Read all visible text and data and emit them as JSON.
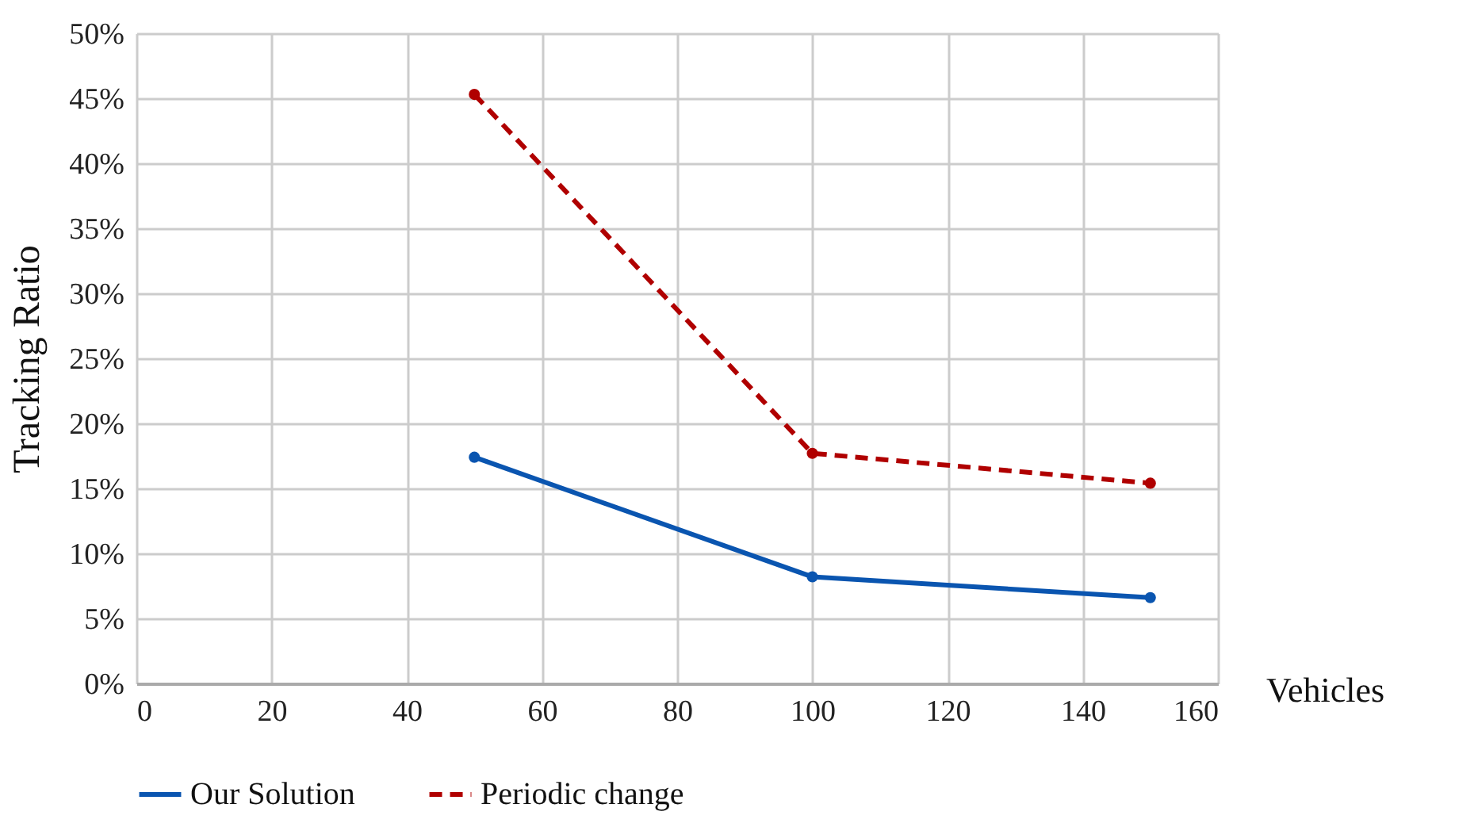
{
  "chart_data": {
    "type": "line",
    "xlabel": "Vehicles",
    "ylabel": "Tracking Ratio",
    "x": [
      50,
      100,
      150
    ],
    "series": [
      {
        "name": "Our Solution",
        "color": "#0a55b0",
        "values": [
          17.4,
          8.2,
          6.6
        ],
        "line_style": "solid"
      },
      {
        "name": "Periodic change",
        "color": "#b00000",
        "values": [
          45.3,
          17.7,
          15.4
        ],
        "line_style": "dashed"
      }
    ],
    "xlim": [
      0,
      160
    ],
    "xticks": [
      0,
      20,
      40,
      60,
      80,
      100,
      120,
      140,
      160
    ],
    "ylim": [
      0,
      50
    ],
    "yticks": [
      {
        "value": 0,
        "label": "0%"
      },
      {
        "value": 5,
        "label": "5%"
      },
      {
        "value": 10,
        "label": "10%"
      },
      {
        "value": 15,
        "label": "15%"
      },
      {
        "value": 20,
        "label": "20%"
      },
      {
        "value": 25,
        "label": "25%"
      },
      {
        "value": 30,
        "label": "30%"
      },
      {
        "value": 35,
        "label": "35%"
      },
      {
        "value": 40,
        "label": "40%"
      },
      {
        "value": 45,
        "label": "45%"
      },
      {
        "value": 50,
        "label": "50%"
      }
    ],
    "grid": true,
    "legend": "bottom",
    "marker": "circle"
  }
}
